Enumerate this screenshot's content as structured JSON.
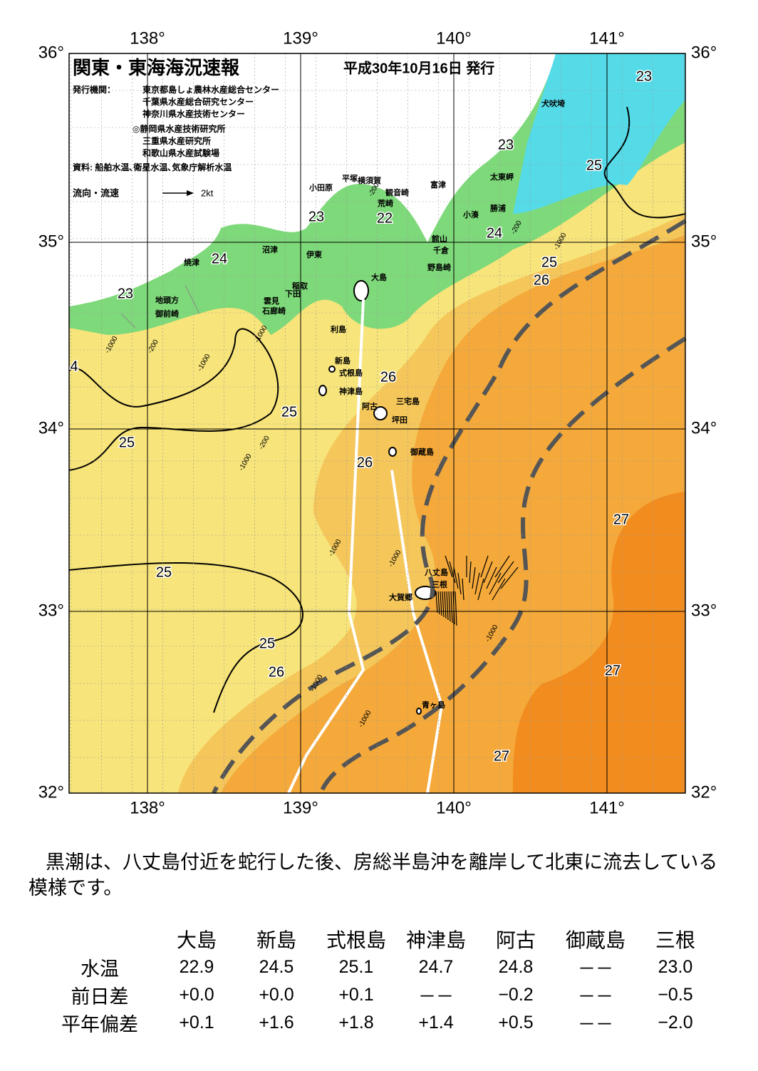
{
  "header": {
    "title": "関東・東海海況速報",
    "date": "平成30年10月16日 発行",
    "agency_label": "発行機関：",
    "agencies": [
      "東京都島しょ農林水産総合センター",
      "千葉県水産総合研究センター",
      "神奈川県水産技術センター",
      "◎静岡県水産技術研究所",
      "三重県水産研究所",
      "和歌山県水産試験場"
    ],
    "source": "資料: 船舶水温､衛星水温､気象庁解析水温",
    "legend": "流向・流速",
    "legend_speed": "2kt"
  },
  "map": {
    "lon_labels": [
      "138°",
      "139°",
      "140°",
      "141°"
    ],
    "lat_labels": [
      "36°",
      "35°",
      "34°",
      "33°",
      "32°"
    ],
    "places": [
      "犬吠埼",
      "太東岬",
      "勝浦",
      "小湊",
      "館山",
      "千倉",
      "野島崎",
      "富津",
      "観音崎",
      "横須賀",
      "平塚",
      "荒崎",
      "小田原",
      "沼津",
      "伊東",
      "稲取",
      "下田",
      "雲見",
      "石廊崎",
      "焼津",
      "地頭方",
      "御前崎",
      "大島",
      "利島",
      "新島",
      "式根島",
      "神津島",
      "三宅島",
      "阿古",
      "坪田",
      "御蔵島",
      "八丈島",
      "三根",
      "大賀郷",
      "青ヶ島"
    ],
    "temps": [
      "23",
      "23",
      "23",
      "22",
      "23",
      "24",
      "24",
      "25",
      "26",
      "25",
      "26",
      "25",
      "25",
      "26",
      "25",
      "25",
      "26",
      "27",
      "27",
      "27",
      "4"
    ],
    "depths": [
      "-200",
      "-1000",
      "-200",
      "-1000",
      "-1000",
      "-200",
      "-1000",
      "-1000",
      "-1000",
      "-1000",
      "-1000",
      "-1000",
      "-1000",
      "-200"
    ]
  },
  "summary": "黒潮は、八丈島付近を蛇行した後、房総半島沖を離岸して北東に流去している模様です。",
  "table": {
    "columns": [
      "大島",
      "新島",
      "式根島",
      "神津島",
      "阿古",
      "御蔵島",
      "三根"
    ],
    "rows": [
      {
        "label": "水温",
        "cells": [
          "22.9",
          "24.5",
          "25.1",
          "24.7",
          "24.8",
          "－－",
          "23.0"
        ]
      },
      {
        "label": "前日差",
        "cells": [
          "+0.0",
          "+0.0",
          "+0.1",
          "－－",
          "−0.2",
          "－－",
          "−0.5"
        ]
      },
      {
        "label": "平年偏差",
        "cells": [
          "+0.1",
          "+1.6",
          "+1.8",
          "+1.4",
          "+0.5",
          "－－",
          "−2.0"
        ]
      }
    ]
  }
}
